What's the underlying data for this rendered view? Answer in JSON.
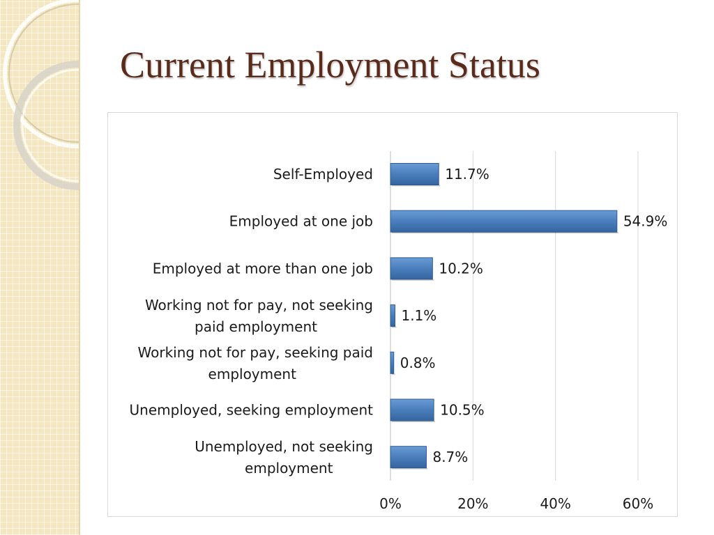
{
  "slide": {
    "title": "Current Employment Status"
  },
  "chart_data": {
    "type": "bar",
    "orientation": "horizontal",
    "title": "",
    "xlabel": "",
    "ylabel": "",
    "categories": [
      "Self-Employed",
      "Employed at one job",
      "Employed at more than one job",
      "Working not for pay, not seeking paid employment",
      "Working not for pay, seeking paid employment",
      "Unemployed, seeking employment",
      "Unemployed, not seeking employment"
    ],
    "category_lines": [
      [
        "Self-Employed"
      ],
      [
        "Employed at one job"
      ],
      [
        "Employed at more than one job"
      ],
      [
        "Working not for pay, not seeking",
        "paid employment"
      ],
      [
        "Working not for pay, seeking paid",
        "employment"
      ],
      [
        "Unemployed, seeking employment"
      ],
      [
        "Unemployed, not seeking",
        "employment"
      ]
    ],
    "values": [
      11.7,
      54.9,
      10.2,
      1.1,
      0.8,
      10.5,
      8.7
    ],
    "data_labels": [
      "11.7%",
      "54.9%",
      "10.2%",
      "1.1%",
      "0.8%",
      "10.5%",
      "8.7%"
    ],
    "xlim": [
      0,
      60
    ],
    "x_ticks": [
      0,
      20,
      40,
      60
    ],
    "x_tick_labels": [
      "0%",
      "20%",
      "40%",
      "60%"
    ],
    "grid": "vertical",
    "legend": "none",
    "colors": {
      "bar": "#4a7ebb",
      "bar_dark": "#2f5c93",
      "grid": "#d9d9d9"
    }
  }
}
